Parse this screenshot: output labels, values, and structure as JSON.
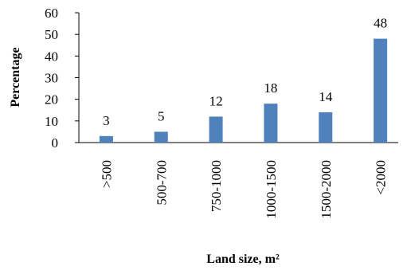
{
  "chart_data": {
    "type": "bar",
    "categories": [
      ">500",
      "500-700",
      "750-1000",
      "1000-1500",
      "1500-2000",
      "<2000"
    ],
    "values": [
      3,
      5,
      12,
      18,
      14,
      48
    ],
    "data_labels": [
      "3",
      "5",
      "12",
      "18",
      "14",
      "48"
    ],
    "title": "",
    "xlabel": "Land size, m²",
    "ylabel": "Percentage",
    "ylim": [
      0,
      60
    ],
    "yticks": [
      "0",
      "10",
      "20",
      "30",
      "40",
      "50",
      "60"
    ],
    "grid": false,
    "legend": "none",
    "bar_color": "#4f81bd"
  }
}
